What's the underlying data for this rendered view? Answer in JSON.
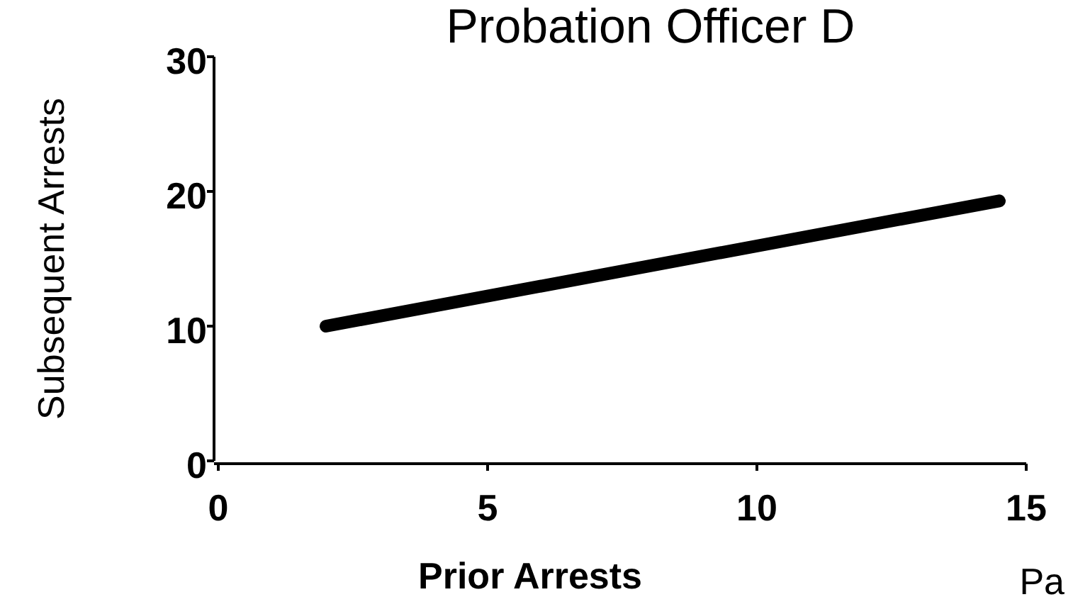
{
  "chart_data": {
    "type": "line",
    "title": "Probation Officer D",
    "xlabel": "Prior Arrests",
    "ylabel": "Subsequent Arrests",
    "x": [
      2,
      14.5
    ],
    "series": [
      {
        "color": "#000000",
        "values": [
          10,
          19.3
        ]
      }
    ],
    "xlim": [
      0,
      15
    ],
    "xticks": [
      0,
      5,
      10,
      15
    ],
    "ylim": [
      0,
      30
    ],
    "yticks": [
      0,
      10,
      20,
      30
    ],
    "grid": false,
    "marker": "none",
    "line_style": "solid",
    "annotations": [
      "Pa"
    ]
  }
}
